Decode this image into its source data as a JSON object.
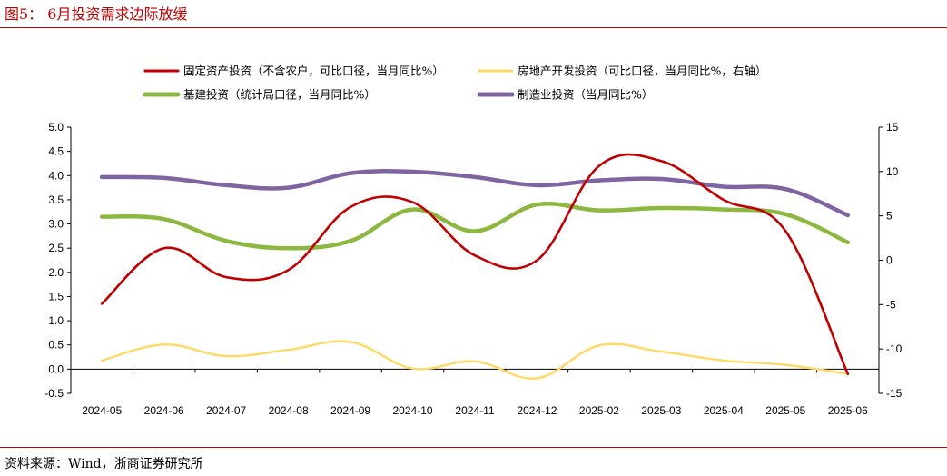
{
  "figure": {
    "title": "图5：  6月投资需求边际放缓",
    "source": "资料来源：Wind，浙商证券研究所",
    "colors": {
      "title": "#c00000",
      "rule": "#c00000"
    }
  },
  "chart_data": {
    "type": "line",
    "categories": [
      "2024-05",
      "2024-06",
      "2024-07",
      "2024-08",
      "2024-09",
      "2024-10",
      "2024-11",
      "2024-12",
      "2025-02",
      "2025-03",
      "2025-04",
      "2025-05",
      "2025-06"
    ],
    "y_left": {
      "min": -0.5,
      "max": 5.0,
      "ticks": [
        "5.0",
        "4.5",
        "4.0",
        "3.5",
        "3.0",
        "2.5",
        "2.0",
        "1.5",
        "1.0",
        "0.5",
        "0.0",
        "-0.5"
      ]
    },
    "y_right": {
      "min": -15,
      "max": 15,
      "ticks": [
        "15",
        "10",
        "5",
        "0",
        "-5",
        "-10",
        "-15"
      ]
    },
    "grid": false,
    "legend_position": "top",
    "series": [
      {
        "name": "固定资产投资（不含农户，可比口径，当月同比%）",
        "axis": "left",
        "color": "#c00000",
        "values": [
          1.35,
          2.5,
          1.9,
          2.05,
          3.35,
          3.45,
          2.35,
          2.25,
          4.2,
          4.3,
          3.5,
          2.85,
          -0.1
        ]
      },
      {
        "name": "房地产开发投资（可比口径，当月同比%，右轴）",
        "axis": "right",
        "color": "#ffd966",
        "values": [
          -11.3,
          -9.5,
          -10.8,
          -10.1,
          -9.2,
          -12.2,
          -11.4,
          -13.3,
          -9.6,
          -10.3,
          -11.3,
          -11.8,
          -12.8
        ]
      },
      {
        "name": "基建投资（统计局口径，当月同比%）",
        "axis": "left",
        "color": "#8db83f",
        "values": [
          3.15,
          3.1,
          2.65,
          2.5,
          2.65,
          3.3,
          2.85,
          3.4,
          3.28,
          3.33,
          3.3,
          3.2,
          2.62
        ]
      },
      {
        "name": "制造业投资（当月同比%）",
        "axis": "left",
        "color": "#8064a2",
        "values": [
          3.97,
          3.95,
          3.8,
          3.75,
          4.05,
          4.08,
          3.97,
          3.8,
          3.9,
          3.93,
          3.77,
          3.72,
          3.18
        ]
      }
    ]
  }
}
